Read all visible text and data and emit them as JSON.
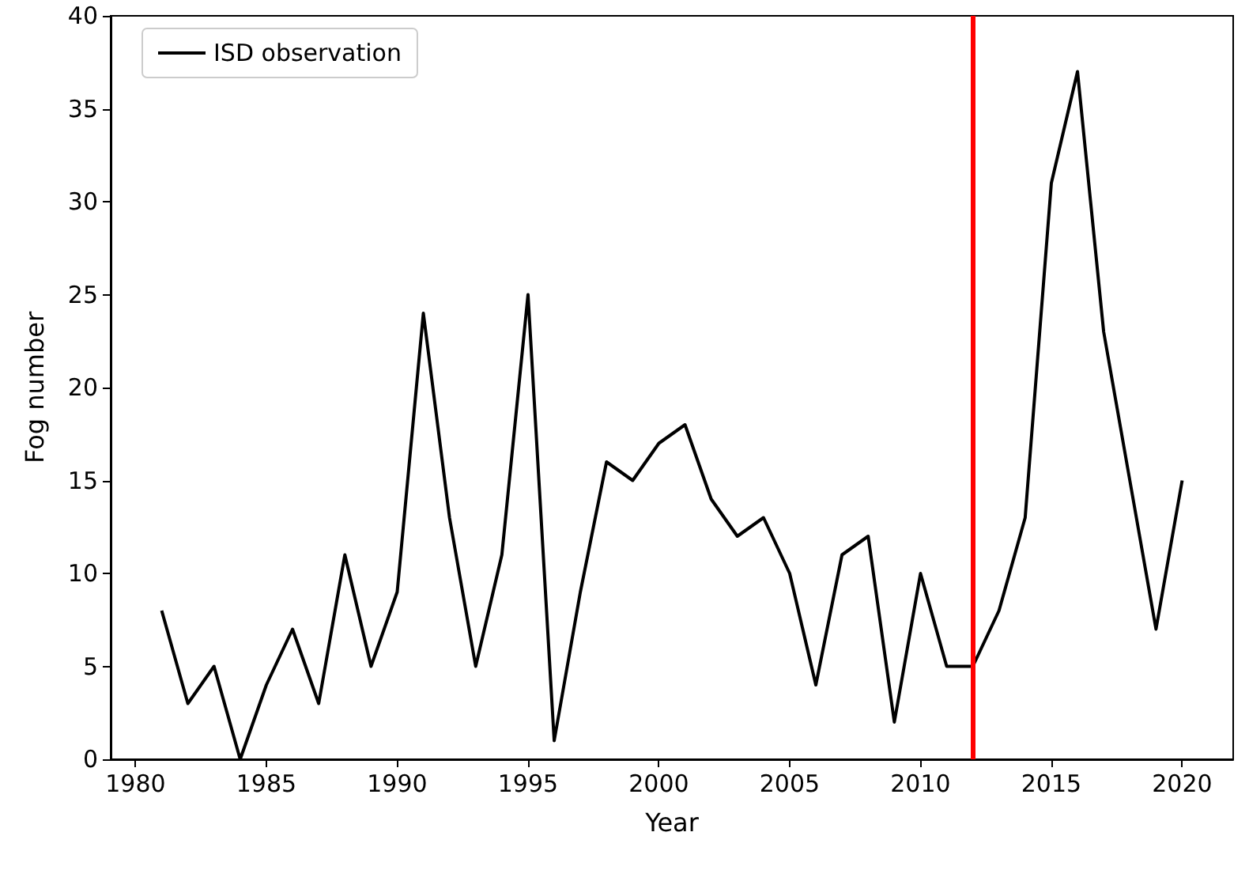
{
  "chart_data": {
    "type": "line",
    "xlabel": "Year",
    "ylabel": "Fog number",
    "x": [
      1981,
      1982,
      1983,
      1984,
      1985,
      1986,
      1987,
      1988,
      1989,
      1990,
      1991,
      1992,
      1993,
      1994,
      1995,
      1996,
      1997,
      1998,
      1999,
      2000,
      2001,
      2002,
      2003,
      2004,
      2005,
      2006,
      2007,
      2008,
      2009,
      2010,
      2011,
      2012,
      2013,
      2014,
      2015,
      2016,
      2017,
      2018,
      2019,
      2020
    ],
    "series": [
      {
        "name": "ISD observation",
        "color": "#000000",
        "values": [
          8,
          3,
          5,
          0,
          4,
          7,
          3,
          11,
          5,
          9,
          24,
          13,
          5,
          11,
          25,
          1,
          9,
          16,
          15,
          17,
          18,
          14,
          12,
          13,
          10,
          4,
          11,
          12,
          2,
          10,
          5,
          5,
          8,
          13,
          31,
          37,
          23,
          15,
          7,
          15
        ]
      }
    ],
    "xlim": [
      1979.05,
      2021.95
    ],
    "xticks": [
      1980,
      1985,
      1990,
      1995,
      2000,
      2005,
      2010,
      2015,
      2020
    ],
    "ylim": [
      0,
      40
    ],
    "yticks": [
      0,
      5,
      10,
      15,
      20,
      25,
      30,
      35,
      40
    ],
    "ref_lines": [
      {
        "axis": "x",
        "value": 2012,
        "color": "#ff0000"
      }
    ],
    "legend": "top left",
    "marker": "none",
    "line_style": "solid",
    "grid": false
  }
}
